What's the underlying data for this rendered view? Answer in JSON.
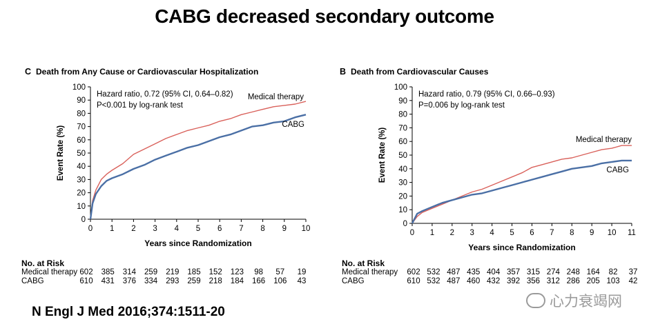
{
  "page_title": "CABG decreased secondary outcome",
  "citation": "N Engl J Med 2016;374:1511-20",
  "watermark": "心力衰竭网",
  "colors": {
    "medical": "#d9605a",
    "cabg": "#4a6fa5",
    "axis": "#000000"
  },
  "chart_data": [
    {
      "type": "line",
      "panel_letter": "C",
      "title": "Death from Any Cause or Cardiovascular Hospitalization",
      "xlabel": "Years since Randomization",
      "ylabel": "Event Rate (%)",
      "xlim": [
        0,
        10
      ],
      "ylim": [
        0,
        100
      ],
      "x_ticks": [
        "0",
        "1",
        "2",
        "3",
        "4",
        "5",
        "6",
        "7",
        "8",
        "9",
        "10"
      ],
      "y_ticks": [
        "0",
        "10",
        "20",
        "30",
        "40",
        "50",
        "60",
        "70",
        "80",
        "90",
        "100"
      ],
      "hr_line1": "Hazard ratio, 0.72 (95% CI, 0.64–0.82)",
      "hr_line2": "P<0.001 by log-rank test",
      "series": [
        {
          "name": "Medical therapy",
          "color": "#d9605a",
          "x": [
            0,
            0.1,
            0.25,
            0.5,
            0.75,
            1,
            1.5,
            2,
            2.5,
            3,
            3.5,
            4,
            4.5,
            5,
            5.5,
            6,
            6.5,
            7,
            7.5,
            8,
            8.5,
            9,
            9.5,
            10
          ],
          "y": [
            0,
            14,
            22,
            30,
            34,
            37,
            42,
            49,
            53,
            57,
            61,
            64,
            67,
            69,
            71,
            74,
            76,
            79,
            81,
            83,
            85,
            86,
            87,
            89
          ]
        },
        {
          "name": "CABG",
          "color": "#4a6fa5",
          "x": [
            0,
            0.1,
            0.25,
            0.5,
            0.75,
            1,
            1.5,
            2,
            2.5,
            3,
            3.5,
            4,
            4.5,
            5,
            5.5,
            6,
            6.5,
            7,
            7.5,
            8,
            8.5,
            9,
            9.5,
            10
          ],
          "y": [
            0,
            12,
            19,
            25,
            29,
            31,
            34,
            38,
            41,
            45,
            48,
            51,
            54,
            56,
            59,
            62,
            64,
            67,
            70,
            71,
            73,
            74,
            77,
            79
          ]
        }
      ],
      "risk_table": {
        "header": "No. at Risk",
        "rows": [
          {
            "label": "Medical therapy",
            "values": [
              "602",
              "385",
              "314",
              "259",
              "219",
              "185",
              "152",
              "123",
              "98",
              "57",
              "19"
            ]
          },
          {
            "label": "CABG",
            "values": [
              "610",
              "431",
              "376",
              "334",
              "293",
              "259",
              "218",
              "184",
              "166",
              "106",
              "43"
            ]
          }
        ]
      }
    },
    {
      "type": "line",
      "panel_letter": "B",
      "title": "Death from Cardiovascular Causes",
      "xlabel": "Years since Randomization",
      "ylabel": "Event Rate (%)",
      "xlim": [
        0,
        11
      ],
      "ylim": [
        0,
        100
      ],
      "x_ticks": [
        "0",
        "1",
        "2",
        "3",
        "4",
        "5",
        "6",
        "7",
        "8",
        "9",
        "10",
        "11"
      ],
      "y_ticks": [
        "0",
        "10",
        "20",
        "30",
        "40",
        "50",
        "60",
        "70",
        "80",
        "90",
        "100"
      ],
      "hr_line1": "Hazard ratio, 0.79 (95% CI, 0.66–0.93)",
      "hr_line2": "P=0.006 by log-rank test",
      "series": [
        {
          "name": "Medical therapy",
          "color": "#d9605a",
          "x": [
            0,
            0.25,
            0.5,
            1,
            1.5,
            2,
            2.5,
            3,
            3.5,
            4,
            4.5,
            5,
            5.5,
            6,
            6.5,
            7,
            7.5,
            8,
            8.5,
            9,
            9.5,
            10,
            10.5,
            11
          ],
          "y": [
            0,
            5,
            8,
            11,
            14,
            17,
            20,
            23,
            25,
            28,
            31,
            34,
            37,
            41,
            43,
            45,
            47,
            48,
            50,
            52,
            54,
            55,
            57,
            57
          ]
        },
        {
          "name": "CABG",
          "color": "#4a6fa5",
          "x": [
            0,
            0.25,
            0.5,
            1,
            1.5,
            2,
            2.5,
            3,
            3.5,
            4,
            4.5,
            5,
            5.5,
            6,
            6.5,
            7,
            7.5,
            8,
            8.5,
            9,
            9.5,
            10,
            10.5,
            11
          ],
          "y": [
            0,
            7,
            9,
            12,
            15,
            17,
            19,
            21,
            22,
            24,
            26,
            28,
            30,
            32,
            34,
            36,
            38,
            40,
            41,
            42,
            44,
            45,
            46,
            46
          ]
        }
      ],
      "risk_table": {
        "header": "No. at Risk",
        "rows": [
          {
            "label": "Medical therapy",
            "values": [
              "602",
              "532",
              "487",
              "435",
              "404",
              "357",
              "315",
              "274",
              "248",
              "164",
              "82",
              "37"
            ]
          },
          {
            "label": "CABG",
            "values": [
              "610",
              "532",
              "487",
              "460",
              "432",
              "392",
              "356",
              "312",
              "286",
              "205",
              "103",
              "42"
            ]
          }
        ]
      }
    }
  ]
}
